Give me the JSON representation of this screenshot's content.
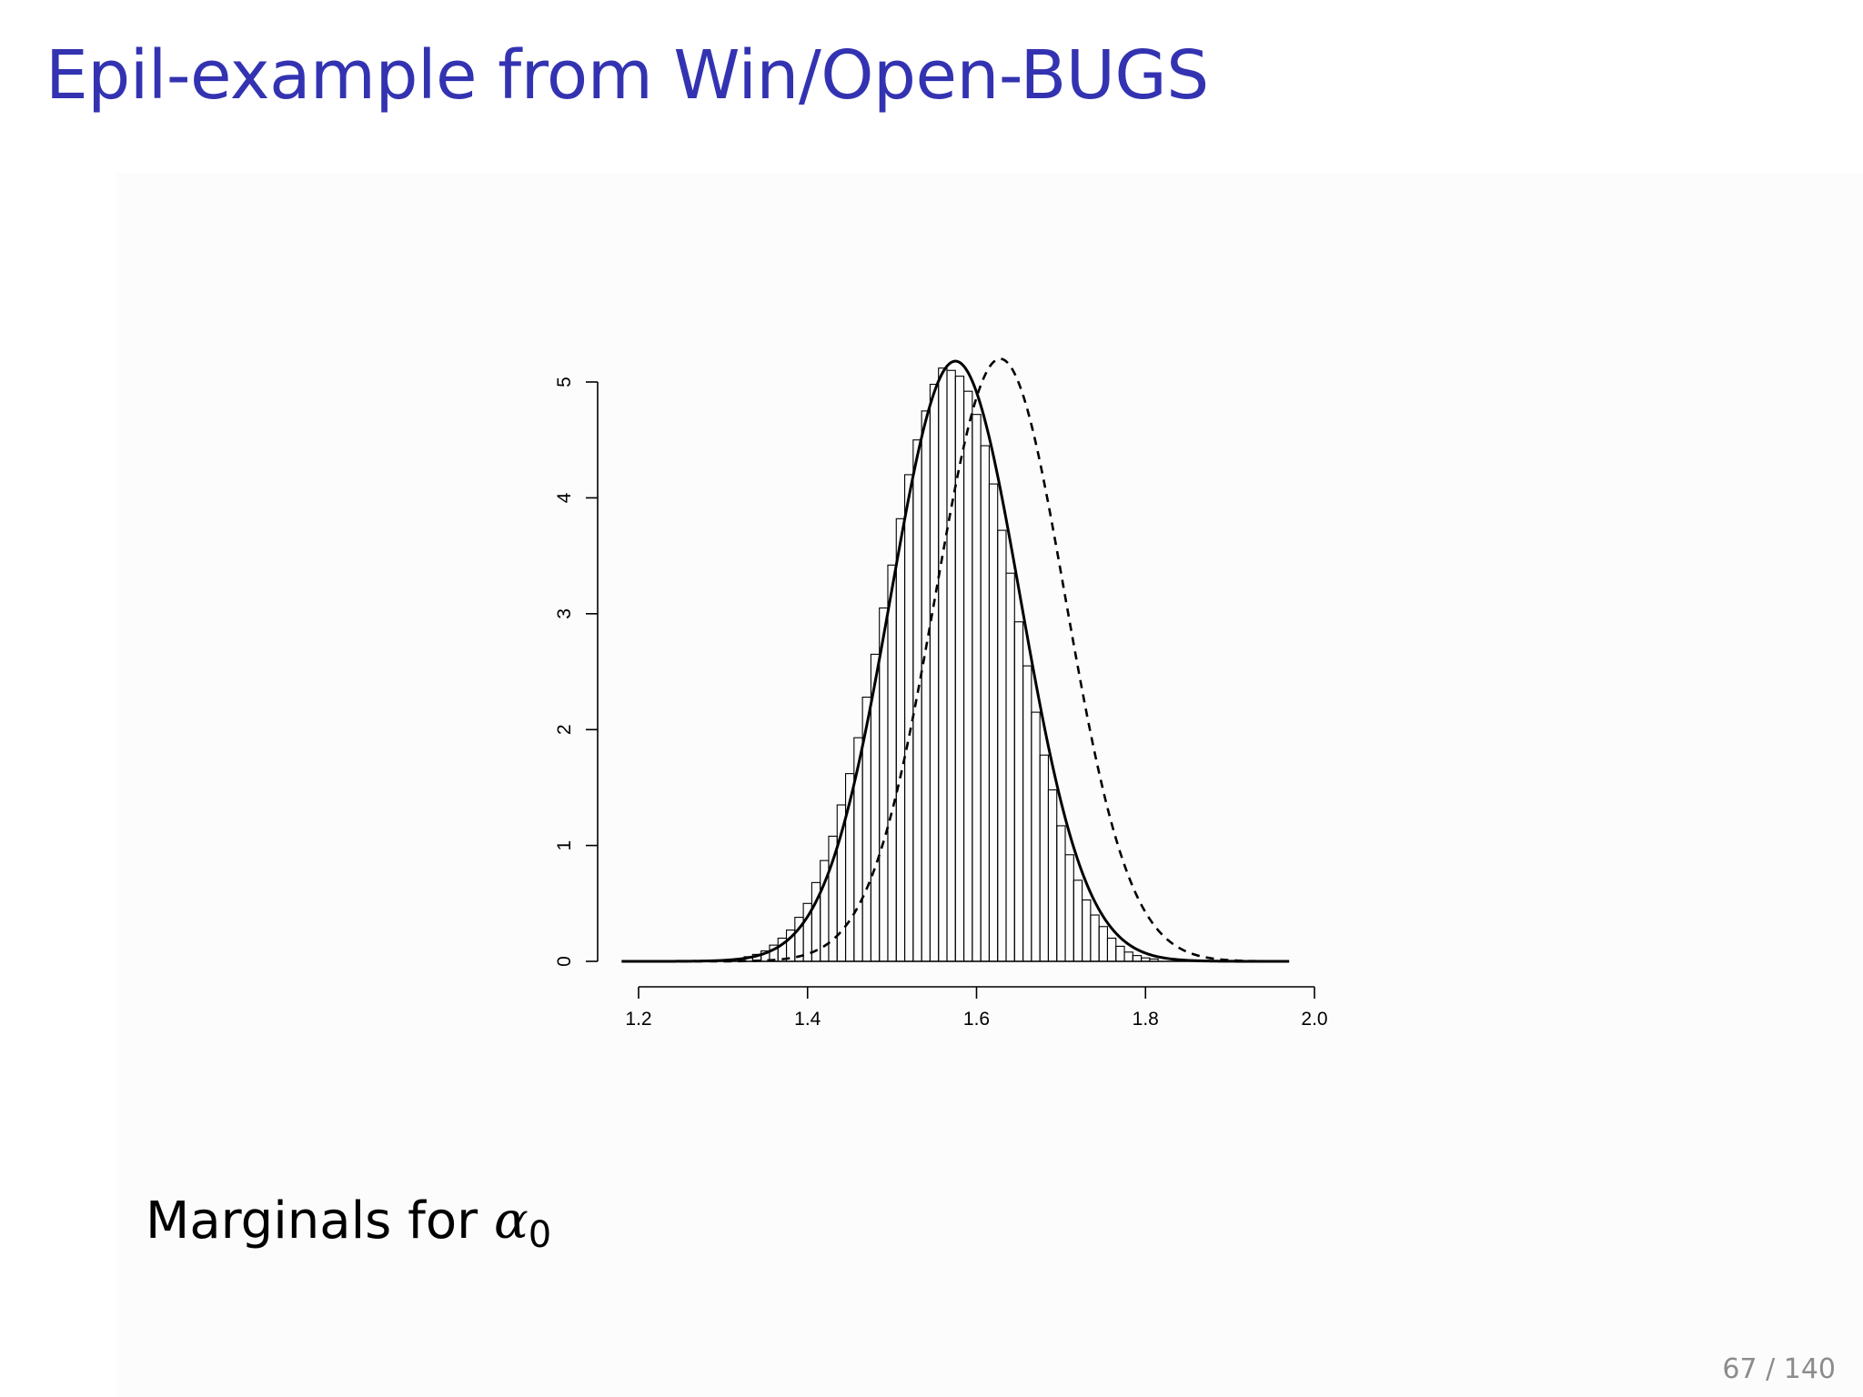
{
  "slide": {
    "title": "Epil-example from Win/Open-BUGS",
    "caption_text": "Marginals for",
    "caption_symbol": "α",
    "caption_subscript": "0",
    "page_number": "67 / 140"
  },
  "chart_data": {
    "type": "histogram",
    "title": "",
    "xlabel": "",
    "ylabel": "",
    "xlim": [
      1.17,
      2.0
    ],
    "ylim": [
      0,
      5.2
    ],
    "x_ticks": [
      "1.2",
      "1.4",
      "1.6",
      "1.8",
      "2.0"
    ],
    "y_ticks": [
      "0",
      "1",
      "2",
      "3",
      "4",
      "5"
    ],
    "grid": false,
    "histogram": {
      "bin_width": 0.01,
      "range": [
        1.18,
        1.97
      ],
      "bins": [
        {
          "x": 1.33,
          "y": 0.04
        },
        {
          "x": 1.34,
          "y": 0.06
        },
        {
          "x": 1.35,
          "y": 0.09
        },
        {
          "x": 1.36,
          "y": 0.14
        },
        {
          "x": 1.37,
          "y": 0.2
        },
        {
          "x": 1.38,
          "y": 0.27
        },
        {
          "x": 1.39,
          "y": 0.38
        },
        {
          "x": 1.4,
          "y": 0.5
        },
        {
          "x": 1.41,
          "y": 0.68
        },
        {
          "x": 1.42,
          "y": 0.87
        },
        {
          "x": 1.43,
          "y": 1.08
        },
        {
          "x": 1.44,
          "y": 1.35
        },
        {
          "x": 1.45,
          "y": 1.62
        },
        {
          "x": 1.46,
          "y": 1.93
        },
        {
          "x": 1.47,
          "y": 2.28
        },
        {
          "x": 1.48,
          "y": 2.65
        },
        {
          "x": 1.49,
          "y": 3.05
        },
        {
          "x": 1.5,
          "y": 3.42
        },
        {
          "x": 1.51,
          "y": 3.82
        },
        {
          "x": 1.52,
          "y": 4.2
        },
        {
          "x": 1.53,
          "y": 4.5
        },
        {
          "x": 1.54,
          "y": 4.75
        },
        {
          "x": 1.55,
          "y": 4.98
        },
        {
          "x": 1.56,
          "y": 5.12
        },
        {
          "x": 1.57,
          "y": 5.1
        },
        {
          "x": 1.58,
          "y": 5.05
        },
        {
          "x": 1.59,
          "y": 4.92
        },
        {
          "x": 1.6,
          "y": 4.72
        },
        {
          "x": 1.61,
          "y": 4.45
        },
        {
          "x": 1.62,
          "y": 4.12
        },
        {
          "x": 1.63,
          "y": 3.72
        },
        {
          "x": 1.64,
          "y": 3.35
        },
        {
          "x": 1.65,
          "y": 2.93
        },
        {
          "x": 1.66,
          "y": 2.55
        },
        {
          "x": 1.67,
          "y": 2.15
        },
        {
          "x": 1.68,
          "y": 1.78
        },
        {
          "x": 1.69,
          "y": 1.48
        },
        {
          "x": 1.7,
          "y": 1.17
        },
        {
          "x": 1.71,
          "y": 0.92
        },
        {
          "x": 1.72,
          "y": 0.7
        },
        {
          "x": 1.73,
          "y": 0.53
        },
        {
          "x": 1.74,
          "y": 0.4
        },
        {
          "x": 1.75,
          "y": 0.3
        },
        {
          "x": 1.76,
          "y": 0.2
        },
        {
          "x": 1.77,
          "y": 0.13
        },
        {
          "x": 1.78,
          "y": 0.08
        },
        {
          "x": 1.79,
          "y": 0.05
        },
        {
          "x": 1.8,
          "y": 0.03
        },
        {
          "x": 1.81,
          "y": 0.02
        }
      ]
    },
    "curves": [
      {
        "style": "solid",
        "distribution": "normal",
        "mean": 1.575,
        "sd": 0.0768,
        "peak": 5.18
      },
      {
        "style": "dashed",
        "distribution": "normal",
        "mean": 1.628,
        "sd": 0.0768,
        "peak": 5.2
      }
    ]
  },
  "colors": {
    "title": "#3333b2",
    "page_number": "#8c8c8c",
    "ink": "#000000"
  }
}
